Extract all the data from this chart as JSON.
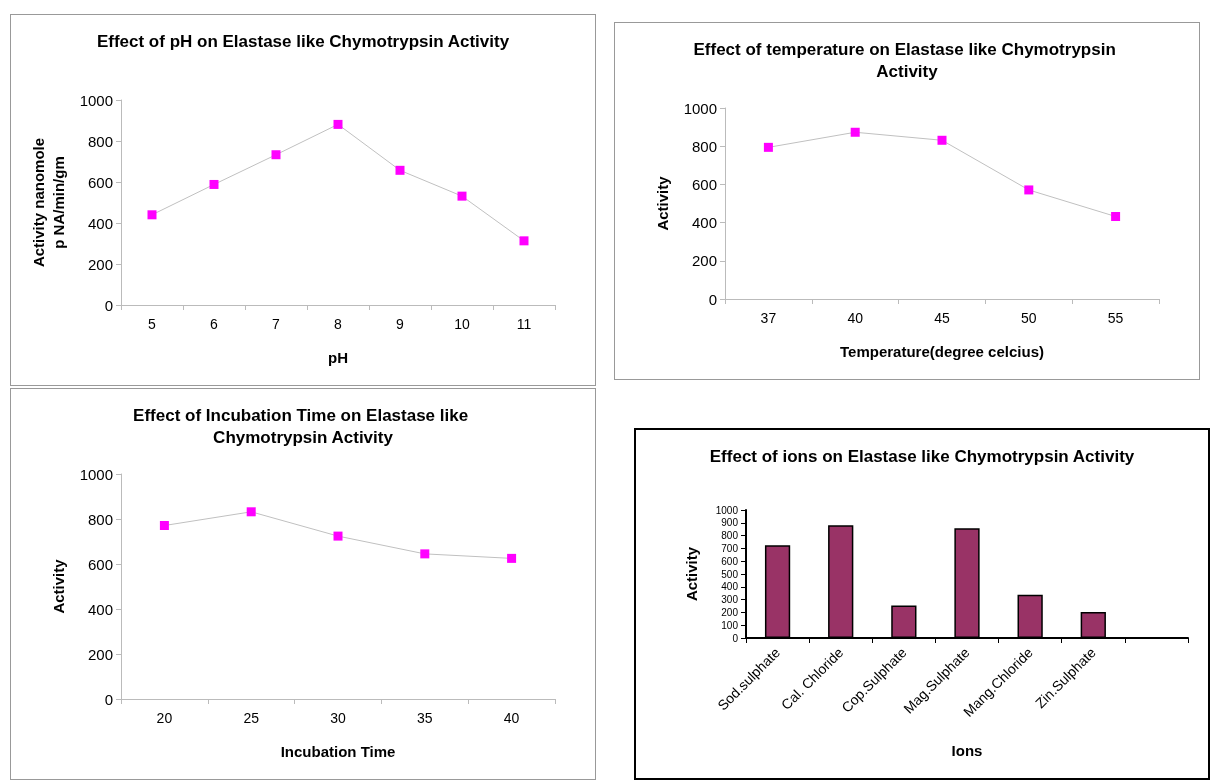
{
  "chart_data": [
    {
      "type": "line",
      "title": "Effect of pH on Elastase like Chymotrypsin Activity",
      "xlabel": "pH",
      "ylabel": "Activity nanomole\np NA/min/gm",
      "categories": [
        "5",
        "6",
        "7",
        "8",
        "9",
        "10",
        "11"
      ],
      "series": [
        {
          "color": "#ff00ff",
          "values": [
            440,
            588,
            733,
            881,
            657,
            531,
            313
          ]
        }
      ],
      "ylim": [
        0,
        1000
      ],
      "yticks": [
        0,
        200,
        400,
        600,
        800,
        1000
      ],
      "marker": "square",
      "grid": false
    },
    {
      "type": "line",
      "title": "Effect of temperature on Elastase like Chymotrypsin Activity",
      "xlabel": "Temperature(degree celcius)",
      "ylabel": "Activity",
      "categories": [
        "37",
        "40",
        "45",
        "50",
        "55"
      ],
      "series": [
        {
          "color": "#ff00ff",
          "values": [
            794,
            873,
            831,
            571,
            432
          ]
        }
      ],
      "ylim": [
        0,
        1000
      ],
      "yticks": [
        0,
        200,
        400,
        600,
        800,
        1000
      ],
      "marker": "square",
      "grid": false
    },
    {
      "type": "line",
      "title": "Effect of Incubation Time on Elastase like Chymotrypsin Activity",
      "xlabel": "Incubation Time",
      "ylabel": "Activity",
      "categories": [
        "20",
        "25",
        "30",
        "35",
        "40"
      ],
      "series": [
        {
          "color": "#ff00ff",
          "values": [
            771,
            832,
            724,
            645,
            625
          ]
        }
      ],
      "ylim": [
        0,
        1000
      ],
      "yticks": [
        0,
        200,
        400,
        600,
        800,
        1000
      ],
      "marker": "square",
      "grid": false
    },
    {
      "type": "bar",
      "title": "Effect of ions on Elastase like Chymotrypsin Activity",
      "xlabel": "Ions",
      "ylabel": "Activity",
      "categories": [
        "Sod.sulphate",
        "Cal. Chloride",
        "Cop.Sulphate",
        "Mag.Sulphate",
        "Mang.Chloride",
        "Zin.Sulphate",
        null
      ],
      "series": [
        {
          "color": "#993366",
          "values": [
            724,
            881,
            253,
            858,
            337,
            203,
            null
          ]
        }
      ],
      "ylim": [
        0,
        1000
      ],
      "yticks": [
        0,
        100,
        200,
        300,
        400,
        500,
        600,
        700,
        800,
        900,
        1000
      ],
      "grid": false
    }
  ]
}
